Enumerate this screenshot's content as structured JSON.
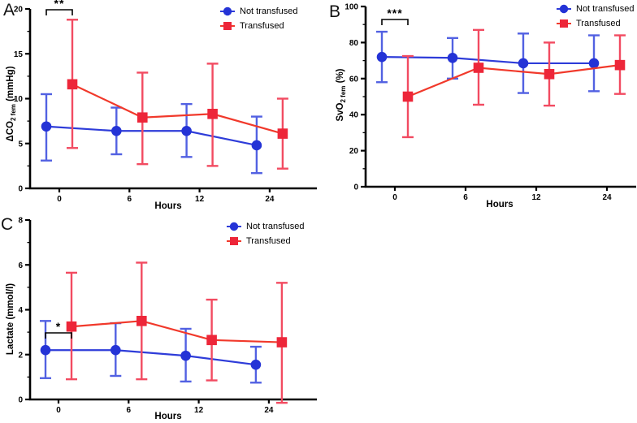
{
  "figure": {
    "background": "#ffffff",
    "legend": {
      "not_transfused": "Not transfused",
      "transfused": "Transfused"
    },
    "colors": {
      "not_transfused": {
        "marker": "#2433d6",
        "error": "#5261e2",
        "line": "#2e3cd9"
      },
      "transfused": {
        "marker": "#ed2639",
        "error": "#f24b61",
        "line": "#f1392b"
      },
      "axis": "#000000"
    }
  },
  "chart_data": [
    {
      "id": "A",
      "type": "line",
      "panel_letter": "A",
      "ylabel": {
        "main": "ΔCO",
        "sub": "2 fem",
        "rest": " (mmHg)"
      },
      "xlabel": "Hours",
      "categories": [
        "0",
        "6",
        "12",
        "24"
      ],
      "ylim": [
        0,
        20
      ],
      "yticks": [
        0,
        5,
        10,
        15,
        20
      ],
      "y_minor_step": 2.5,
      "legend_position": "top-right-inside",
      "grid": false,
      "series": [
        {
          "name": "Not transfused",
          "values": [
            6.9,
            6.4,
            6.4,
            4.8
          ],
          "err_low": [
            3.1,
            3.8,
            3.5,
            1.7
          ],
          "err_high": [
            10.5,
            9.0,
            9.4,
            8.0
          ]
        },
        {
          "name": "Transfused",
          "values": [
            11.6,
            7.9,
            8.3,
            6.1
          ],
          "err_low": [
            4.5,
            2.7,
            2.5,
            2.2
          ],
          "err_high": [
            18.8,
            12.9,
            13.9,
            10.0
          ]
        }
      ],
      "significance": {
        "label": "**",
        "at_category": 0
      }
    },
    {
      "id": "B",
      "type": "line",
      "panel_letter": "B",
      "ylabel": {
        "main": "SvO",
        "sub": "2 fem",
        "rest": " (%)"
      },
      "xlabel": "Hours",
      "categories": [
        "0",
        "6",
        "12",
        "24"
      ],
      "ylim": [
        0,
        100
      ],
      "yticks": [
        0,
        20,
        40,
        60,
        80,
        100
      ],
      "y_minor_step": 10,
      "legend_position": "top-right-inside",
      "grid": false,
      "series": [
        {
          "name": "Not transfused",
          "values": [
            72,
            71.5,
            68.5,
            68.5
          ],
          "err_low": [
            58,
            60,
            52,
            53
          ],
          "err_high": [
            86,
            82.5,
            85,
            84
          ]
        },
        {
          "name": "Transfused",
          "values": [
            50,
            66,
            62.5,
            67.5
          ],
          "err_low": [
            27.5,
            45.5,
            45,
            51.5
          ],
          "err_high": [
            72.5,
            87,
            80,
            84
          ]
        }
      ],
      "significance": {
        "label": "***",
        "at_category": 0
      }
    },
    {
      "id": "C",
      "type": "line",
      "panel_letter": "C",
      "ylabel": {
        "main": "Lactate (mmol/l)",
        "sub": "",
        "rest": ""
      },
      "xlabel": "Hours",
      "categories": [
        "0",
        "6",
        "12",
        "24"
      ],
      "ylim": [
        0,
        8
      ],
      "yticks": [
        0,
        2,
        4,
        6,
        8
      ],
      "y_minor_step": 1,
      "legend_position": "top-right-inside",
      "grid": false,
      "series": [
        {
          "name": "Not transfused",
          "values": [
            2.2,
            2.2,
            1.95,
            1.55
          ],
          "err_low": [
            0.95,
            1.05,
            0.8,
            0.75
          ],
          "err_high": [
            3.5,
            3.4,
            3.15,
            2.35
          ]
        },
        {
          "name": "Transfused",
          "values": [
            3.25,
            3.5,
            2.65,
            2.55
          ],
          "err_low": [
            0.9,
            0.9,
            0.85,
            -0.15
          ],
          "err_high": [
            5.65,
            6.1,
            4.45,
            5.2
          ]
        }
      ],
      "significance": {
        "label": "*",
        "at_category": 0
      }
    }
  ]
}
